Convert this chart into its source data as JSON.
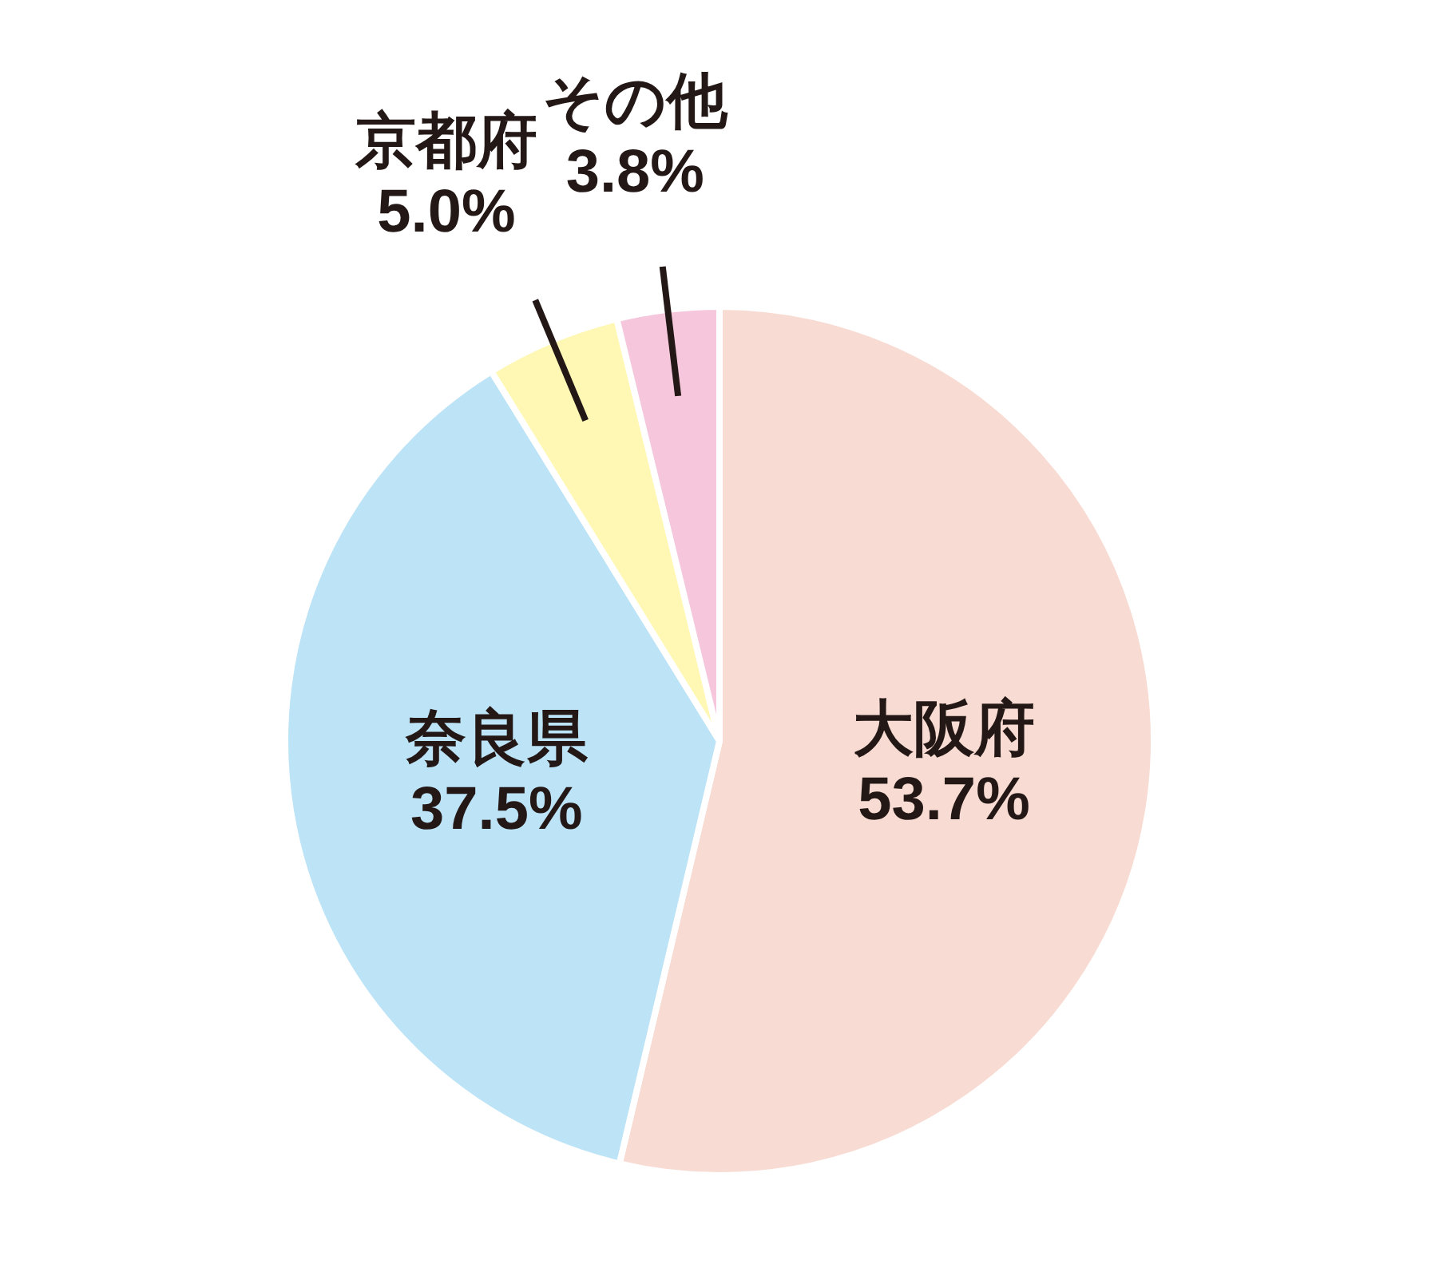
{
  "chart_data": {
    "type": "pie",
    "categories": [
      "大阪府",
      "奈良県",
      "京都府",
      "その他"
    ],
    "values": [
      53.7,
      37.5,
      5.0,
      3.8
    ],
    "value_labels": [
      "53.7%",
      "37.5%",
      "5.0%",
      "3.8%"
    ],
    "colors": [
      "#f8dcd3",
      "#bde3f7",
      "#fef8b4",
      "#f5c6dc"
    ],
    "legend": false
  }
}
